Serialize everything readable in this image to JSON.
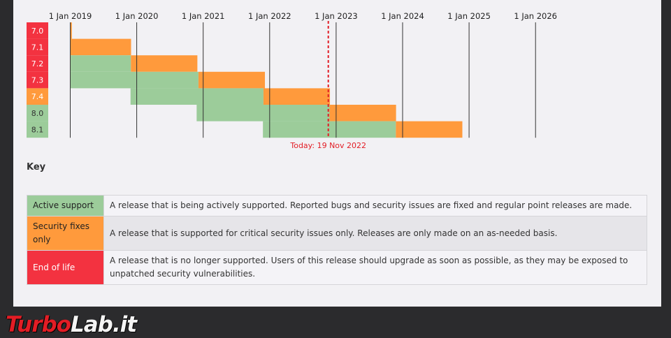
{
  "chart_data": {
    "type": "gantt",
    "x_ticks": [
      "1 Jan 2019",
      "1 Jan 2020",
      "1 Jan 2021",
      "1 Jan 2022",
      "1 Jan 2023",
      "1 Jan 2024",
      "1 Jan 2025",
      "1 Jan 2026"
    ],
    "x_range": [
      "2018-10-01",
      "2026-06-30"
    ],
    "today": {
      "date": "2022-11-19",
      "label": "Today: 19 Nov 2022",
      "color": "#e21d25"
    },
    "colors": {
      "active": "#9ccc9a",
      "security": "#ff9a3c",
      "eol": "#f33240"
    },
    "versions": [
      {
        "label": "7.0",
        "status": "eol",
        "active_end": "2018-12-03",
        "security_end": "2019-01-10"
      },
      {
        "label": "7.1",
        "status": "eol",
        "active_end": "2019-01-01",
        "security_end": "2019-12-01"
      },
      {
        "label": "7.2",
        "status": "eol",
        "active_end": "2019-11-30",
        "security_end": "2020-11-30"
      },
      {
        "label": "7.3",
        "status": "eol",
        "active_end": "2020-12-06",
        "security_end": "2021-12-06"
      },
      {
        "label": "7.4",
        "status": "security",
        "active_end": "2021-11-28",
        "security_end": "2022-11-28"
      },
      {
        "label": "8.0",
        "status": "active",
        "active_end": "2022-11-26",
        "security_end": "2023-11-26"
      },
      {
        "label": "8.1",
        "status": "active",
        "active_end": "2023-11-25",
        "security_end": "2024-11-25"
      }
    ]
  },
  "key": {
    "title": "Key",
    "rows": [
      {
        "label": "Active support",
        "color": "#9ccc9a",
        "description": "A release that is being actively supported. Reported bugs and security issues are fixed and regular point releases are made."
      },
      {
        "label": "Security fixes only",
        "color": "#ff9a3c",
        "description": "A release that is supported for critical security issues only. Releases are only made on an as-needed basis."
      },
      {
        "label": "End of life",
        "color": "#f33240",
        "description": "A release that is no longer supported. Users of this release should upgrade as soon as possible, as they may be exposed to unpatched security vulnerabilities."
      }
    ]
  },
  "watermark": {
    "part1": "Turbo",
    "part2": "Lab.it"
  }
}
